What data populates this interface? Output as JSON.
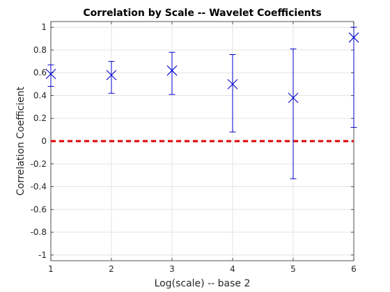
{
  "chart_data": {
    "type": "errorbar",
    "title": "Correlation by Scale -- Wavelet Coefficients",
    "xlabel": "Log(scale) -- base 2",
    "ylabel": "Correlation Coefficient",
    "xlim": [
      1,
      6
    ],
    "ylim": [
      -1.05,
      1.05
    ],
    "xticks": [
      1,
      2,
      3,
      4,
      5,
      6
    ],
    "yticks": [
      -1,
      -0.8,
      -0.6,
      -0.4,
      -0.2,
      0,
      0.2,
      0.4,
      0.6,
      0.8,
      1
    ],
    "grid": true,
    "series": [
      {
        "marker": "x",
        "color": "#0000cc",
        "x": [
          1,
          2,
          3,
          4,
          5,
          6
        ],
        "y": [
          0.59,
          0.58,
          0.62,
          0.5,
          0.38,
          0.91
        ],
        "lower": [
          0.48,
          0.42,
          0.41,
          0.08,
          -0.33,
          0.12
        ],
        "upper": [
          0.67,
          0.7,
          0.78,
          0.76,
          0.81,
          1.0
        ]
      }
    ],
    "reference_line": {
      "y": 0,
      "style": "dashed",
      "color": "#dd0000"
    }
  }
}
